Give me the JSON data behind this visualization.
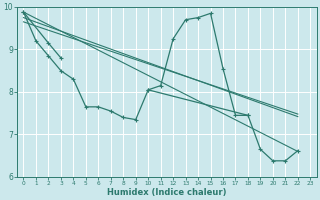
{
  "xlabel": "Humidex (Indice chaleur)",
  "bg_color": "#cce8ec",
  "grid_color": "#ffffff",
  "line_color": "#2d7a6e",
  "xlim": [
    -0.5,
    23.5
  ],
  "ylim": [
    6,
    10
  ],
  "yticks": [
    6,
    7,
    8,
    9,
    10
  ],
  "xticks": [
    0,
    1,
    2,
    3,
    4,
    5,
    6,
    7,
    8,
    9,
    10,
    11,
    12,
    13,
    14,
    15,
    16,
    17,
    18,
    19,
    20,
    21,
    22,
    23
  ],
  "series_jagged": {
    "x": [
      0,
      1,
      2,
      3,
      4,
      5,
      6,
      7,
      8,
      9,
      10,
      11,
      12,
      13,
      14,
      15,
      16,
      17,
      18,
      19,
      20,
      21,
      22
    ],
    "y": [
      9.88,
      9.2,
      8.85,
      8.5,
      8.3,
      7.65,
      7.65,
      7.55,
      7.4,
      7.35,
      8.05,
      8.15,
      9.25,
      9.7,
      9.75,
      9.85,
      8.55,
      7.45,
      7.45,
      6.65,
      6.38,
      6.38,
      6.62
    ]
  },
  "series_short": {
    "segments": [
      {
        "x": [
          0,
          2,
          3
        ],
        "y": [
          9.88,
          9.15,
          8.8
        ]
      },
      {
        "x": [
          10,
          18
        ],
        "y": [
          8.05,
          7.45
        ]
      }
    ]
  },
  "trend_lines": [
    {
      "x": [
        0,
        22
      ],
      "y": [
        9.88,
        6.6
      ]
    },
    {
      "x": [
        0,
        22
      ],
      "y": [
        9.75,
        7.42
      ]
    },
    {
      "x": [
        0,
        22
      ],
      "y": [
        9.65,
        7.48
      ]
    }
  ]
}
